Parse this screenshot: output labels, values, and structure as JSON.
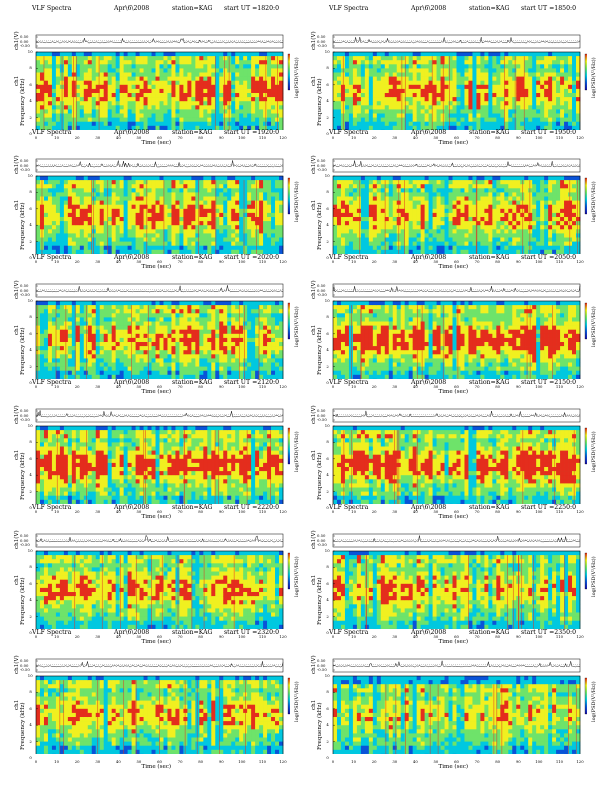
{
  "header": {
    "title": "VLF Spectra",
    "date": "Apr\\6\\2008",
    "station": "station=KAG",
    "start_prefix": "start  UT  ="
  },
  "axes": {
    "xlabel": "Time  (sec)",
    "ylabel": "Frequency  (kHz)",
    "ylabel_top": "ch1",
    "waveform_label": "ch1(V)",
    "colorbar_label": "log(PSD(V²/Hz))",
    "xticks": [
      "0",
      "10",
      "20",
      "30",
      "40",
      "50",
      "60",
      "70",
      "80",
      "90",
      "100",
      "110",
      "120"
    ],
    "yticks": [
      "0",
      "2",
      "4",
      "6",
      "8",
      "10"
    ],
    "wave_ticks": [
      "0.50",
      "0.00",
      "-0.50"
    ],
    "xlim": [
      0,
      120
    ],
    "ylim": [
      0,
      10
    ]
  },
  "colors": {
    "colormap": [
      "#1a0fa3",
      "#0a53d8",
      "#00c8e0",
      "#6ee36a",
      "#f0f020",
      "#e42d1d"
    ]
  },
  "chart_data": [
    {
      "type": "heatmap",
      "start_ut": "1820:0",
      "intensity": 0.7,
      "band_top_khz": 9.5
    },
    {
      "type": "heatmap",
      "start_ut": "1850:0",
      "intensity": 0.68,
      "band_top_khz": 9.5
    },
    {
      "type": "heatmap",
      "start_ut": "1920:0",
      "intensity": 0.72,
      "band_top_khz": 9.5
    },
    {
      "type": "heatmap",
      "start_ut": "1950:0",
      "intensity": 0.7,
      "band_top_khz": 9.5
    },
    {
      "type": "heatmap",
      "start_ut": "2020:0",
      "intensity": 0.7,
      "band_top_khz": 9.5
    },
    {
      "type": "heatmap",
      "start_ut": "2050:0",
      "intensity": 0.88,
      "band_top_khz": 9.5
    },
    {
      "type": "heatmap",
      "start_ut": "2120:0",
      "intensity": 0.82,
      "band_top_khz": 9.5
    },
    {
      "type": "heatmap",
      "start_ut": "2150:0",
      "intensity": 0.82,
      "band_top_khz": 9.5
    },
    {
      "type": "heatmap",
      "start_ut": "2220:0",
      "intensity": 0.72,
      "band_top_khz": 9.5
    },
    {
      "type": "heatmap",
      "start_ut": "2250:0",
      "intensity": 0.62,
      "band_top_khz": 9.5
    },
    {
      "type": "heatmap",
      "start_ut": "2320:0",
      "intensity": 0.68,
      "band_top_khz": 9.5
    },
    {
      "type": "heatmap",
      "start_ut": "2350:0",
      "intensity": 0.52,
      "band_top_khz": 9.0
    }
  ]
}
